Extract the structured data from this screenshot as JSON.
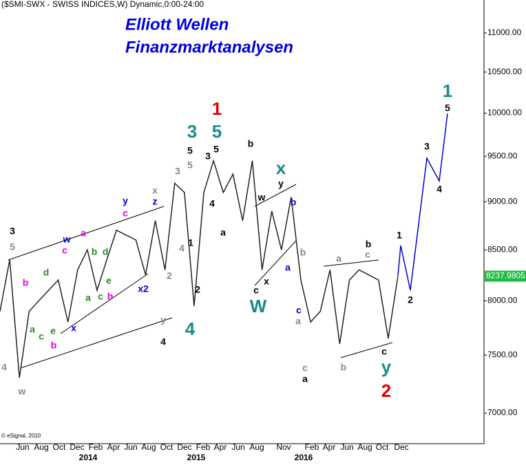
{
  "chart_data": {
    "type": "line",
    "title": "Elliott Wellen",
    "subtitle": "Finanzmarktanalysen",
    "header": "($SMI-SWX - SWISS INDICES,W) Dynamic,0:00-24:00",
    "copyright": "© eSignal, 2010",
    "log_scale": true,
    "ylim": [
      6750,
      11440
    ],
    "yticks": [
      {
        "value": 7000,
        "label": "7000.00"
      },
      {
        "value": 7500,
        "label": "7500.00"
      },
      {
        "value": 8000,
        "label": "8000.00"
      },
      {
        "value": 8500,
        "label": "8500.00"
      },
      {
        "value": 9000,
        "label": "9000.00"
      },
      {
        "value": 9500,
        "label": "9500.00"
      },
      {
        "value": 10000,
        "label": "10000.00"
      },
      {
        "value": 10500,
        "label": "10500.00"
      },
      {
        "value": 11000,
        "label": "11000.00"
      }
    ],
    "month_labels": [
      "Jun",
      "Aug",
      "Oct",
      "Dec",
      "Feb",
      "Apr",
      "Jun",
      "Aug",
      "Oct",
      "Dec",
      "Feb",
      "Apr",
      "Jun",
      "Aug",
      "Nov",
      "Feb",
      "Apr",
      "Jun",
      "Aug",
      "Oct",
      "Dec"
    ],
    "year_labels": [
      "2014",
      "2015",
      "2016"
    ],
    "categories": [
      null,
      null,
      null,
      null,
      null,
      null,
      null,
      null,
      null,
      null,
      null,
      null,
      null,
      null,
      null,
      null,
      null,
      null,
      null,
      null,
      null,
      null,
      null,
      null,
      null,
      null,
      null,
      null,
      null,
      null,
      null,
      null,
      null,
      null,
      null,
      null,
      null,
      null,
      null,
      null,
      null,
      null
    ],
    "series": [
      {
        "name": "$SMI-SWX",
        "color": "#222222",
        "values": [
          7900,
          8400,
          7300,
          7900,
          8000,
          8100,
          8200,
          7800,
          8300,
          8500,
          8100,
          8400,
          8700,
          8650,
          8600,
          8250,
          8800,
          8300,
          9200,
          9100,
          7950,
          9100,
          9450,
          9100,
          9300,
          8800,
          9450,
          8300,
          8900,
          8500,
          9050,
          8200,
          7800,
          7900,
          8300,
          7600,
          8200,
          8300,
          8250,
          8200,
          7650,
          8237.9805
        ]
      }
    ],
    "wave_labels": [
      {
        "text": "3",
        "color": "#000000"
      },
      {
        "text": "5",
        "color": "#888888"
      },
      {
        "text": "4",
        "color": "#888888"
      },
      {
        "text": "w",
        "color": "#888888"
      },
      {
        "text": "a",
        "color": "#2a8a2a"
      },
      {
        "text": "b",
        "color": "#e000e0"
      },
      {
        "text": "c",
        "color": "#2a8a2a"
      },
      {
        "text": "d",
        "color": "#2a8a2a"
      },
      {
        "text": "e",
        "color": "#2a8a2a"
      },
      {
        "text": "b",
        "color": "#e000e0"
      },
      {
        "text": "x",
        "color": "#0000cc"
      },
      {
        "text": "c",
        "color": "#e000e0"
      },
      {
        "text": "w",
        "color": "#0000cc"
      },
      {
        "text": "a",
        "color": "#2a8a2a"
      },
      {
        "text": "b",
        "color": "#2a8a2a"
      },
      {
        "text": "d",
        "color": "#2a8a2a"
      },
      {
        "text": "a",
        "color": "#e000e0"
      },
      {
        "text": "c",
        "color": "#2a8a2a"
      },
      {
        "text": "e",
        "color": "#2a8a2a"
      },
      {
        "text": "b",
        "color": "#e000e0"
      },
      {
        "text": "y",
        "color": "#0000cc"
      },
      {
        "text": "c",
        "color": "#e000e0"
      },
      {
        "text": "x2",
        "color": "#0000cc"
      },
      {
        "text": "x",
        "color": "#888888"
      },
      {
        "text": "z",
        "color": "#0000cc"
      },
      {
        "text": "3",
        "color": "#888888"
      },
      {
        "text": "5",
        "color": "#888888"
      },
      {
        "text": "5",
        "color": "#000000"
      },
      {
        "text": "3",
        "color": "#1a8a8a"
      },
      {
        "text": "4",
        "color": "#888888"
      },
      {
        "text": "1",
        "color": "#000000"
      },
      {
        "text": "2",
        "color": "#888888"
      },
      {
        "text": "2",
        "color": "#000000"
      },
      {
        "text": "y",
        "color": "#888888"
      },
      {
        "text": "4",
        "color": "#000000"
      },
      {
        "text": "4",
        "color": "#1a8a8a"
      },
      {
        "text": "5",
        "color": "#1a8a8a"
      },
      {
        "text": "1",
        "color": "#e00000"
      },
      {
        "text": "5",
        "color": "#000000"
      },
      {
        "text": "3",
        "color": "#000000"
      },
      {
        "text": "4",
        "color": "#000000"
      },
      {
        "text": "a",
        "color": "#000000"
      },
      {
        "text": "b",
        "color": "#000000"
      },
      {
        "text": "w",
        "color": "#000000"
      },
      {
        "text": "y",
        "color": "#000000"
      },
      {
        "text": "x",
        "color": "#1a8a8a"
      },
      {
        "text": "b",
        "color": "#0000cc"
      },
      {
        "text": "c",
        "color": "#000000"
      },
      {
        "text": "x",
        "color": "#000000"
      },
      {
        "text": "W",
        "color": "#1a8a8a"
      },
      {
        "text": "a",
        "color": "#0000cc"
      },
      {
        "text": "b",
        "color": "#888888"
      },
      {
        "text": "c",
        "color": "#0000cc"
      },
      {
        "text": "a",
        "color": "#888888"
      },
      {
        "text": "c",
        "color": "#888888"
      },
      {
        "text": "a",
        "color": "#000000"
      },
      {
        "text": "a",
        "color": "#888888"
      },
      {
        "text": "b",
        "color": "#888888"
      },
      {
        "text": "c",
        "color": "#888888"
      },
      {
        "text": "b",
        "color": "#000000"
      },
      {
        "text": "1",
        "color": "#000000"
      },
      {
        "text": "c",
        "color": "#000000"
      },
      {
        "text": "y",
        "color": "#1a8a8a"
      },
      {
        "text": "2",
        "color": "#e00000"
      },
      {
        "text": "2",
        "color": "#000000"
      },
      {
        "text": "3",
        "color": "#000000"
      },
      {
        "text": "4",
        "color": "#000000"
      },
      {
        "text": "5",
        "color": "#000000"
      },
      {
        "text": "1",
        "color": "#1a8a8a"
      }
    ]
  }
}
